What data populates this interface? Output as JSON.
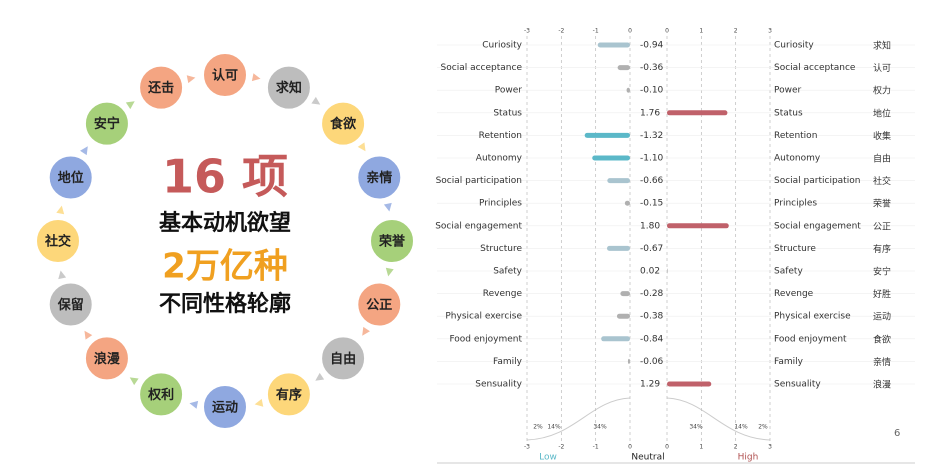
{
  "diagram": {
    "nodes": [
      "认可",
      "求知",
      "食欲",
      "亲情",
      "荣誉",
      "公正",
      "自由",
      "有序",
      "运动",
      "权利",
      "浪漫",
      "保留",
      "社交",
      "地位",
      "安宁",
      "还击"
    ],
    "center": [
      "16 项",
      "基本动机欲望",
      "2万亿种",
      "不同性格轮廓"
    ]
  },
  "chart_data": {
    "type": "bar",
    "categories": [
      "Curiosity",
      "Social acceptance",
      "Power",
      "Status",
      "Retention",
      "Autonomy",
      "Social participation",
      "Principles",
      "Social engagement",
      "Structure",
      "Safety",
      "Revenge",
      "Physical exercise",
      "Food enjoyment",
      "Family",
      "Sensuality"
    ],
    "categories_zh": [
      "求知",
      "认可",
      "权力",
      "地位",
      "收集",
      "自由",
      "社交",
      "荣誉",
      "公正",
      "有序",
      "安宁",
      "好胜",
      "运动",
      "食欲",
      "亲情",
      "浪漫"
    ],
    "values": [
      -0.94,
      -0.36,
      -0.1,
      1.76,
      -1.32,
      -1.1,
      -0.66,
      -0.15,
      1.8,
      -0.67,
      0.02,
      -0.28,
      -0.38,
      -0.84,
      -0.06,
      1.29
    ],
    "value_labels": [
      "-0.94",
      "-0.36",
      "-0.10",
      "1.76",
      "-1.32",
      "-1.10",
      "-0.66",
      "-0.15",
      "1.80",
      "-0.67",
      "0.02",
      "-0.28",
      "-0.38",
      "-0.84",
      "-0.06",
      "1.29"
    ],
    "colors": [
      "#a9c4cf",
      "#b0b0b0",
      "#b0b0b0",
      "#c0616a",
      "#5bb8c8",
      "#5bb8c8",
      "#a9c4cf",
      "#b0b0b0",
      "#c0616a",
      "#a9c4cf",
      "#b0b0b0",
      "#b0b0b0",
      "#b0b0b0",
      "#a9c4cf",
      "#b0b0b0",
      "#c0616a"
    ],
    "xlim_low": [
      -3,
      0
    ],
    "xticks_low": [
      -3,
      -2,
      -1,
      0
    ],
    "xlim_high": [
      0,
      3
    ],
    "xticks_high": [
      0,
      1,
      2,
      3
    ],
    "distribution_labels_low": [
      "2%",
      "14%",
      "34%"
    ],
    "distribution_labels_high": [
      "34%",
      "14%",
      "2%"
    ],
    "xlabel_low": "Low",
    "xlabel_mid": "Neutral",
    "xlabel_high": "High",
    "page_number": "6"
  }
}
